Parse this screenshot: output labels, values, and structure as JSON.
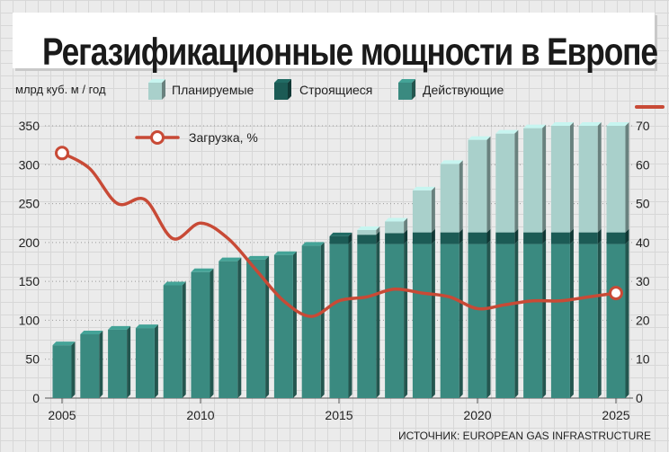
{
  "title": "Регазификационные мощности в Европе",
  "source": "ИСТОЧНИК: EUROPEAN GAS INFRASTRUCTURE",
  "colors": {
    "operating": "#3a8a80",
    "operating_dark": "#1f5e57",
    "under_construction": "#1c5b55",
    "planned": "#a9d0cb",
    "utilization_line": "#c84a36",
    "background": "#ebebeb"
  },
  "chart_data": {
    "type": "bar",
    "stacked": true,
    "ylabel": "млрд куб. м / год",
    "ylim": [
      0,
      350
    ],
    "y_ticks": [
      "0",
      "50",
      "100",
      "150",
      "200",
      "250",
      "300",
      "350"
    ],
    "y2_ticks": [
      "0",
      "10",
      "20",
      "30",
      "40",
      "50",
      "60",
      "70"
    ],
    "y2lim": [
      0,
      70
    ],
    "x_tick_labels": [
      "2005",
      "2010",
      "2015",
      "2020",
      "2025"
    ],
    "legend_position": "top",
    "grid": true,
    "categories": [
      2005,
      2006,
      2007,
      2008,
      2009,
      2010,
      2011,
      2012,
      2013,
      2014,
      2015,
      2016,
      2017,
      2018,
      2019,
      2020,
      2021,
      2022,
      2023,
      2024,
      2025
    ],
    "series": [
      {
        "name": "Действующие",
        "values": [
          68,
          82,
          88,
          90,
          145,
          162,
          176,
          178,
          184,
          196,
          198,
          198,
          198,
          198,
          198,
          198,
          198,
          198,
          198,
          198,
          198
        ]
      },
      {
        "name": "Строящиеся",
        "values": [
          0,
          0,
          0,
          0,
          0,
          0,
          0,
          0,
          0,
          0,
          10,
          12,
          14,
          15,
          15,
          15,
          15,
          15,
          15,
          15,
          15
        ]
      },
      {
        "name": "Планируемые",
        "values": [
          0,
          0,
          0,
          0,
          0,
          0,
          0,
          0,
          0,
          0,
          0,
          6,
          15,
          54,
          88,
          119,
          127,
          134,
          137,
          137,
          137
        ]
      }
    ],
    "line": {
      "name": "Загрузка, %",
      "x": [
        2005,
        2006,
        2007,
        2008,
        2009,
        2010,
        2011,
        2012,
        2013,
        2014,
        2015,
        2016,
        2017,
        2018,
        2019,
        2020,
        2021,
        2022,
        2023,
        2024,
        2025
      ],
      "values": [
        63,
        59,
        50,
        51,
        41,
        45,
        41,
        33,
        25,
        21,
        25,
        26,
        28,
        27,
        26,
        23,
        24,
        25,
        25,
        26,
        27
      ]
    }
  }
}
